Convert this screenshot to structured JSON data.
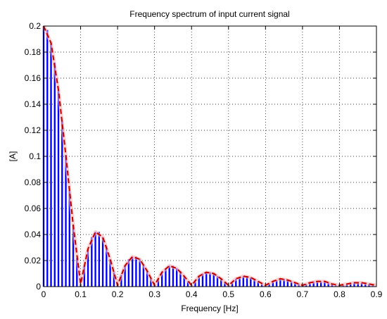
{
  "chart_data": {
    "type": "bar",
    "title": "Frequency spectrum of input current signal",
    "xlabel": "Frequency [Hz]",
    "ylabel": "[A]",
    "xlim": [
      0,
      0.9
    ],
    "ylim": [
      0,
      0.2
    ],
    "xticks": [
      "0",
      "0.1",
      "0.2",
      "0.3",
      "0.4",
      "0.5",
      "0.6",
      "0.7",
      "0.8",
      "0.9"
    ],
    "yticks": [
      "0",
      "0.02",
      "0.04",
      "0.06",
      "0.08",
      "0.1",
      "0.12",
      "0.14",
      "0.16",
      "0.18",
      "0.2"
    ],
    "grid": true,
    "bar_spacing_hz": 0.01,
    "series": [
      {
        "style": "stem",
        "color": "#0000ff",
        "x": [
          0,
          0.01,
          0.02,
          0.03,
          0.04,
          0.05,
          0.06,
          0.07,
          0.08,
          0.09,
          0.1,
          0.11,
          0.12,
          0.13,
          0.14,
          0.15,
          0.16,
          0.17,
          0.18,
          0.19,
          0.2,
          0.21,
          0.22,
          0.23,
          0.24,
          0.25,
          0.26,
          0.27,
          0.28,
          0.29,
          0.3,
          0.31,
          0.32,
          0.33,
          0.34,
          0.35,
          0.36,
          0.37,
          0.38,
          0.39,
          0.4,
          0.41,
          0.42,
          0.43,
          0.44,
          0.45,
          0.46,
          0.47,
          0.48,
          0.49,
          0.5,
          0.51,
          0.52,
          0.53,
          0.54,
          0.55,
          0.56,
          0.57,
          0.58,
          0.59,
          0.6,
          0.61,
          0.62,
          0.63,
          0.64,
          0.65,
          0.66,
          0.67,
          0.68,
          0.69,
          0.7,
          0.71,
          0.72,
          0.73,
          0.74,
          0.75,
          0.76,
          0.77,
          0.78,
          0.79,
          0.8,
          0.81,
          0.82,
          0.83,
          0.84,
          0.85,
          0.86,
          0.87,
          0.88,
          0.89
        ],
        "values": [
          0.2,
          0.197,
          0.187,
          0.172,
          0.151,
          0.127,
          0.101,
          0.074,
          0.047,
          0.022,
          0.002,
          0.016,
          0.029,
          0.038,
          0.042,
          0.042,
          0.038,
          0.031,
          0.021,
          0.011,
          0.001,
          0.009,
          0.016,
          0.021,
          0.023,
          0.023,
          0.021,
          0.017,
          0.012,
          0.006,
          0.001,
          0.006,
          0.011,
          0.014,
          0.016,
          0.016,
          0.014,
          0.012,
          0.008,
          0.004,
          0.001,
          0.004,
          0.008,
          0.01,
          0.011,
          0.011,
          0.01,
          0.008,
          0.006,
          0.003,
          0.001,
          0.003,
          0.006,
          0.007,
          0.008,
          0.008,
          0.007,
          0.006,
          0.004,
          0.002,
          0.001,
          0.002,
          0.004,
          0.005,
          0.006,
          0.006,
          0.005,
          0.004,
          0.003,
          0.002,
          0.001,
          0.002,
          0.003,
          0.004,
          0.004,
          0.004,
          0.004,
          0.003,
          0.002,
          0.001,
          0.001,
          0.001,
          0.002,
          0.003,
          0.003,
          0.003,
          0.003,
          0.002,
          0.002,
          0.001
        ]
      },
      {
        "style": "envelope",
        "color": "#c00000",
        "line": "dashed",
        "x": [
          0,
          0.02,
          0.04,
          0.06,
          0.08,
          0.1,
          0.12,
          0.14,
          0.16,
          0.18,
          0.2,
          0.22,
          0.24,
          0.26,
          0.28,
          0.3,
          0.32,
          0.34,
          0.36,
          0.38,
          0.4,
          0.42,
          0.44,
          0.46,
          0.48,
          0.5,
          0.52,
          0.54,
          0.56,
          0.58,
          0.6,
          0.62,
          0.64,
          0.66,
          0.68,
          0.7,
          0.72,
          0.74,
          0.76,
          0.78,
          0.8,
          0.82,
          0.84,
          0.86,
          0.88,
          0.9
        ],
        "values": [
          0.2,
          0.187,
          0.151,
          0.101,
          0.047,
          0.002,
          0.029,
          0.042,
          0.038,
          0.021,
          0.001,
          0.016,
          0.023,
          0.021,
          0.012,
          0.001,
          0.011,
          0.016,
          0.014,
          0.008,
          0.001,
          0.008,
          0.011,
          0.01,
          0.006,
          0.001,
          0.006,
          0.008,
          0.007,
          0.004,
          0.001,
          0.004,
          0.006,
          0.005,
          0.003,
          0.001,
          0.003,
          0.004,
          0.004,
          0.002,
          0.001,
          0.002,
          0.003,
          0.003,
          0.002,
          0.001
        ]
      }
    ]
  }
}
